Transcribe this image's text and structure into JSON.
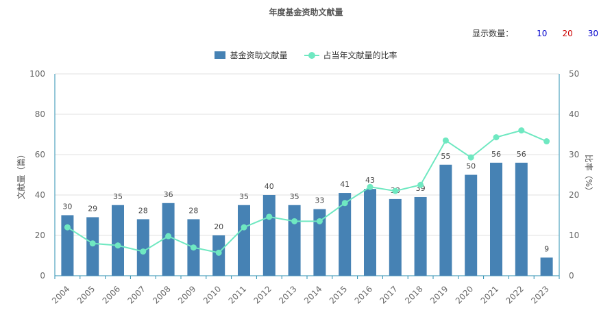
{
  "title": "年度基金资助文献量",
  "count_selector": {
    "label": "显示数量：",
    "options": [
      {
        "label": "10",
        "color": "#0000cc"
      },
      {
        "label": "20",
        "color": "#cc0000"
      },
      {
        "label": "30",
        "color": "#0000cc"
      }
    ]
  },
  "legend": {
    "bar": "基金资助文献量",
    "line": "占当年文献量的比率"
  },
  "colors": {
    "bar": "#4682b4",
    "line": "#6fe8c1",
    "axis": "#2a8fb0",
    "grid": "#e0e0e0"
  },
  "chart_data": {
    "type": "bar",
    "title": "年度基金资助文献量",
    "categories": [
      "2004",
      "2005",
      "2006",
      "2007",
      "2008",
      "2009",
      "2010",
      "2011",
      "2012",
      "2013",
      "2014",
      "2015",
      "2016",
      "2017",
      "2018",
      "2019",
      "2020",
      "2021",
      "2022",
      "2023"
    ],
    "series": [
      {
        "name": "基金资助文献量",
        "type": "bar",
        "axis": "left",
        "values": [
          30,
          29,
          35,
          28,
          36,
          28,
          20,
          35,
          40,
          35,
          33,
          41,
          43,
          38,
          39,
          55,
          50,
          56,
          56,
          9
        ]
      },
      {
        "name": "占当年文献量的比率",
        "type": "line",
        "axis": "right",
        "values": [
          12,
          8,
          7.5,
          6,
          9.8,
          7,
          5.7,
          12,
          14.6,
          13.5,
          13.5,
          18,
          22,
          21,
          22.5,
          33.5,
          29.3,
          34.3,
          36,
          33.3
        ]
      }
    ],
    "ylabel": "文献量（篇）",
    "y2label": "比率（%）",
    "ylim": [
      0,
      100
    ],
    "y2lim": [
      0,
      50
    ],
    "yticks": [
      "0",
      "20",
      "40",
      "60",
      "80",
      "100"
    ],
    "y2ticks": [
      "0",
      "10",
      "20",
      "30",
      "40",
      "50"
    ],
    "grid": true,
    "legend_position": "top-center"
  }
}
